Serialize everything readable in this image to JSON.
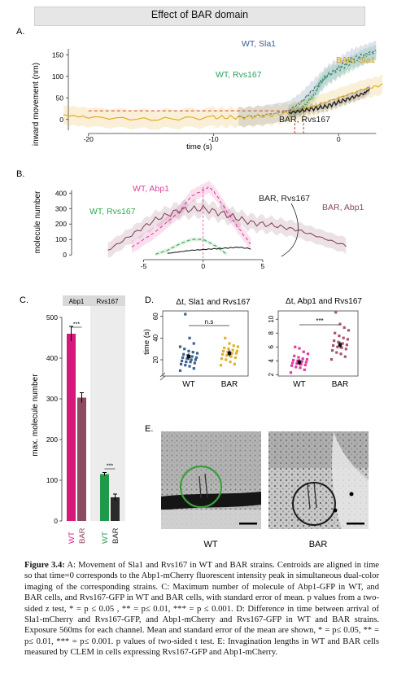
{
  "header": {
    "title": "Effect of BAR domain"
  },
  "panels": {
    "A": {
      "letter": "A.",
      "ylabel": "inward movement (nm)",
      "xlabel": "time (s)",
      "series_labels": {
        "wt_sla1": "WT, Sla1",
        "wt_rvs167": "WT, Rvs167",
        "bar_sla1": "BAR, Sla1",
        "bar_rvs167": "BAR, Rvs167"
      },
      "colors": {
        "wt_sla1": "#3d5f8f",
        "wt_rvs167": "#2f9e5b",
        "bar_sla1": "#e0a81a",
        "bar_rvs167": "#222222",
        "threshold": "#d0332b"
      }
    },
    "B": {
      "letter": "B.",
      "ylabel": "molecule number",
      "series_labels": {
        "wt_abp1": "WT, Abp1",
        "wt_rvs167": "WT, Rvs167",
        "bar_rvs167": "BAR, Rvs167",
        "bar_abp1": "BAR, Abp1"
      },
      "colors": {
        "wt_abp1": "#e0409a",
        "wt_rvs167": "#2fa84f",
        "bar_rvs167": "#222222",
        "bar_abp1": "#8a4a63"
      }
    },
    "C": {
      "letter": "C.",
      "ylabel": "max. molecule number",
      "headers": [
        "Abp1",
        "Rvs167"
      ],
      "sig": [
        "***",
        "***"
      ],
      "x_labels": [
        "WT",
        "BAR",
        "WT",
        "BAR"
      ]
    },
    "D": {
      "letter": "D.",
      "left_title": "Δt, Sla1 and Rvs167",
      "right_title": "Δt, Abp1 and Rvs167",
      "ylabel": "time (s)",
      "left_sig": "n.s",
      "right_sig": "***",
      "x_labels": [
        "WT",
        "BAR"
      ]
    },
    "E": {
      "letter": "E.",
      "labels": [
        "WT",
        "BAR"
      ]
    }
  },
  "chart_data": [
    {
      "type": "line",
      "panel": "A",
      "xlabel": "time (s)",
      "ylabel": "inward movement (nm)",
      "xlim": [
        -22,
        3.5
      ],
      "ylim": [
        -25,
        175
      ],
      "x_ticks": [
        -20,
        -10,
        0
      ],
      "y_ticks": [
        0,
        50,
        100,
        150
      ],
      "threshold_y": 20,
      "threshold_x": [
        -3.5,
        -2.8
      ],
      "series": [
        {
          "name": "WT, Sla1",
          "x": [
            -8,
            -6,
            -4,
            -3,
            -2,
            -1,
            0,
            1,
            2,
            3
          ],
          "y": [
            5,
            10,
            20,
            40,
            70,
            100,
            120,
            140,
            150,
            160
          ]
        },
        {
          "name": "WT, Rvs167",
          "x": [
            -4,
            -3,
            -2.5,
            -2,
            -1.5,
            -1,
            0,
            1,
            2,
            3
          ],
          "y": [
            15,
            25,
            40,
            55,
            80,
            100,
            115,
            130,
            145,
            155
          ]
        },
        {
          "name": "BAR, Sla1",
          "x": [
            -22,
            -20,
            -15,
            -10,
            -8,
            -6,
            -4,
            -2,
            0,
            2,
            3.5
          ],
          "y": [
            10,
            5,
            0,
            5,
            5,
            8,
            15,
            30,
            50,
            70,
            80
          ]
        },
        {
          "name": "BAR, Rvs167",
          "x": [
            -4,
            -3,
            -2,
            -1,
            0,
            1,
            2,
            2.5
          ],
          "y": [
            15,
            20,
            25,
            30,
            40,
            50,
            60,
            70
          ]
        }
      ]
    },
    {
      "type": "line",
      "panel": "B",
      "ylabel": "molecule number",
      "xlim": [
        -9,
        13
      ],
      "ylim": [
        -20,
        470
      ],
      "x_ticks": [
        -5,
        0,
        5
      ],
      "y_ticks": [
        0,
        100,
        200,
        300,
        400
      ],
      "series": [
        {
          "name": "WT, Abp1",
          "x": [
            -6,
            -4,
            -2,
            -1,
            0,
            0.5,
            1,
            2,
            3,
            4
          ],
          "y": [
            50,
            150,
            280,
            380,
            420,
            440,
            400,
            280,
            170,
            70
          ]
        },
        {
          "name": "WT, Rvs167",
          "x": [
            -4,
            -3,
            -2,
            -1,
            0,
            1,
            2
          ],
          "y": [
            5,
            30,
            70,
            100,
            100,
            60,
            5
          ]
        },
        {
          "name": "BAR, Rvs167",
          "x": [
            -3,
            -2,
            -1,
            0,
            1,
            2,
            3,
            4
          ],
          "y": [
            10,
            20,
            30,
            35,
            40,
            45,
            50,
            40
          ]
        },
        {
          "name": "BAR, Abp1",
          "x": [
            -8,
            -6,
            -4,
            -2,
            0,
            2,
            4,
            6,
            8,
            10,
            12
          ],
          "y": [
            30,
            130,
            230,
            290,
            300,
            260,
            210,
            190,
            160,
            110,
            60
          ]
        }
      ]
    },
    {
      "type": "bar",
      "panel": "C",
      "categories": [
        "Abp1 WT",
        "Abp1 BAR",
        "Rvs167 WT",
        "Rvs167 BAR"
      ],
      "values": [
        460,
        303,
        115,
        58
      ],
      "errors": [
        18,
        12,
        4,
        8
      ],
      "colors": [
        "#d6177c",
        "#8d4a63",
        "#1f9a4a",
        "#2a2a2a"
      ],
      "ylabel": "max. molecule number",
      "ylim": [
        0,
        520
      ],
      "y_ticks": [
        0,
        100,
        200,
        300,
        400,
        500
      ]
    },
    {
      "type": "scatter",
      "panel": "D-left",
      "title": "Δt, Sla1 and Rvs167",
      "ylabel": "time (s)",
      "y_ticks": [
        20,
        40,
        60
      ],
      "ylim": [
        5,
        65
      ],
      "groups": [
        {
          "name": "WT",
          "color": "#3d5f8f",
          "mean": 23,
          "points": [
            10,
            12,
            14,
            15,
            16,
            17,
            18,
            18,
            19,
            20,
            20,
            21,
            22,
            22,
            23,
            24,
            25,
            26,
            27,
            28,
            30,
            32,
            35,
            40,
            62
          ]
        },
        {
          "name": "BAR",
          "color": "#e0b030",
          "mean": 26,
          "points": [
            15,
            16,
            18,
            20,
            21,
            22,
            23,
            24,
            25,
            26,
            26,
            27,
            28,
            28,
            29,
            30,
            31,
            32,
            33,
            35,
            40
          ]
        }
      ]
    },
    {
      "type": "scatter",
      "panel": "D-right",
      "title": "Δt, Abp1 and Rvs167",
      "y_ticks": [
        2,
        4,
        6,
        8,
        10
      ],
      "ylim": [
        1.8,
        11.2
      ],
      "groups": [
        {
          "name": "WT",
          "color": "#e03fa0",
          "mean": 3.8,
          "points": [
            2.3,
            2.7,
            3.0,
            3.1,
            3.3,
            3.4,
            3.5,
            3.6,
            3.7,
            3.8,
            3.9,
            4.0,
            4.1,
            4.2,
            4.3,
            4.5,
            4.7,
            5.0,
            5.3,
            5.8,
            6.0
          ]
        },
        {
          "name": "BAR",
          "color": "#a9556f",
          "mean": 6.3,
          "points": [
            4.2,
            4.6,
            5.0,
            5.2,
            5.5,
            5.7,
            5.9,
            6.0,
            6.2,
            6.3,
            6.5,
            6.7,
            6.9,
            7.1,
            7.3,
            7.6,
            8.0,
            8.4,
            8.8,
            9.3,
            11.0
          ]
        }
      ]
    }
  ],
  "caption": {
    "label": "Figure 3.4:",
    "text": "A: Movement of Sla1 and Rvs167 in WT and BAR strains. Centroids are aligned in time so that time=0 corresponds to the Abp1-mCherry fluorescent intensity peak in simultaneous dual-color imaging of the corresponding strains. C: Maximum number of molecule of Abp1-GFP in WT, and BAR cells, and Rvs167-GFP in WT and BAR cells, with standard error of mean. p values from a two-sided z test, * = p ≤ 0.05 , ** = p≤ 0.01, *** = p ≤ 0.001. D: Difference in time between arrival of Sla1-mCherry and Rvs167-GFP, and Abp1-mCherry and Rvs167-GFP in WT and BAR strains. Exposure 560ms for each channel. Mean and standard error of the mean are shown, * = p≤ 0.05, ** = p≤ 0.01, *** = p≤ 0.001. p values of two-sided t test. E: Invagination lengths in WT and BAR cells measured by CLEM in cells expressing Rvs167-GFP and Abp1-mCherry."
  }
}
